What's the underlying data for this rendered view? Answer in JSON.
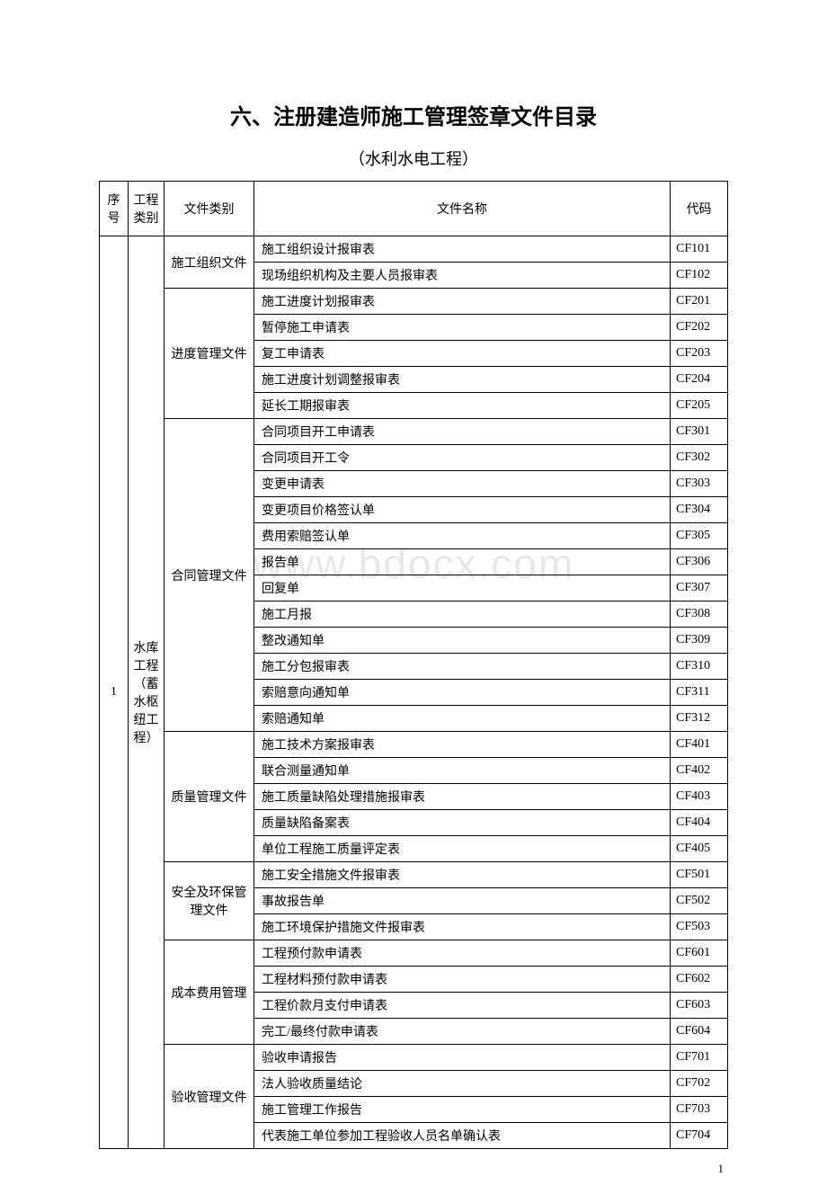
{
  "title": "六、注册建造师施工管理签章文件目录",
  "subtitle": "（水利水电工程）",
  "watermark": "www.bdocx.com",
  "pageNumber": "1",
  "headers": {
    "seq": "序号",
    "category": "工程类别",
    "fileType": "文件类别",
    "fileName": "文件名称",
    "code": "代码"
  },
  "seq": "1",
  "category": "水库工程（蓄水枢纽工程）",
  "groups": [
    {
      "type": "施工组织文件",
      "rows": [
        {
          "name": "施工组织设计报审表",
          "code": "CF101"
        },
        {
          "name": "现场组织机构及主要人员报审表",
          "code": "CF102"
        }
      ]
    },
    {
      "type": "进度管理文件",
      "rows": [
        {
          "name": "施工进度计划报审表",
          "code": "CF201"
        },
        {
          "name": "暂停施工申请表",
          "code": "CF202"
        },
        {
          "name": "复工申请表",
          "code": "CF203"
        },
        {
          "name": "施工进度计划调整报审表",
          "code": "CF204"
        },
        {
          "name": "延长工期报审表",
          "code": "CF205"
        }
      ]
    },
    {
      "type": "合同管理文件",
      "rows": [
        {
          "name": "合同项目开工申请表",
          "code": "CF301"
        },
        {
          "name": "合同项目开工令",
          "code": "CF302"
        },
        {
          "name": "变更申请表",
          "code": "CF303"
        },
        {
          "name": "变更项目价格签认单",
          "code": "CF304"
        },
        {
          "name": "费用索赔签认单",
          "code": "CF305"
        },
        {
          "name": "报告单",
          "code": "CF306"
        },
        {
          "name": "回复单",
          "code": "CF307"
        },
        {
          "name": "施工月报",
          "code": "CF308"
        },
        {
          "name": "整改通知单",
          "code": "CF309"
        },
        {
          "name": "施工分包报审表",
          "code": "CF310"
        },
        {
          "name": "索赔意向通知单",
          "code": "CF311"
        },
        {
          "name": "索赔通知单",
          "code": "CF312"
        }
      ]
    },
    {
      "type": "质量管理文件",
      "rows": [
        {
          "name": "施工技术方案报审表",
          "code": "CF401"
        },
        {
          "name": "联合测量通知单",
          "code": "CF402"
        },
        {
          "name": "施工质量缺陷处理措施报审表",
          "code": "CF403"
        },
        {
          "name": "质量缺陷备案表",
          "code": "CF404"
        },
        {
          "name": "单位工程施工质量评定表",
          "code": "CF405"
        }
      ]
    },
    {
      "type": "安全及环保管理文件",
      "rows": [
        {
          "name": "施工安全措施文件报审表",
          "code": "CF501"
        },
        {
          "name": "事故报告单",
          "code": "CF502"
        },
        {
          "name": "施工环境保护措施文件报审表",
          "code": "CF503"
        }
      ]
    },
    {
      "type": "成本费用管理",
      "rows": [
        {
          "name": "工程预付款申请表",
          "code": "CF601"
        },
        {
          "name": "工程材料预付款申请表",
          "code": "CF602"
        },
        {
          "name": "工程价款月支付申请表",
          "code": "CF603"
        },
        {
          "name": "完工/最终付款申请表",
          "code": "CF604"
        }
      ]
    },
    {
      "type": "验收管理文件",
      "rows": [
        {
          "name": "验收申请报告",
          "code": "CF701"
        },
        {
          "name": "法人验收质量结论",
          "code": "CF702"
        },
        {
          "name": "施工管理工作报告",
          "code": "CF703"
        },
        {
          "name": "代表施工单位参加工程验收人员名单确认表",
          "code": "CF704"
        }
      ]
    }
  ]
}
